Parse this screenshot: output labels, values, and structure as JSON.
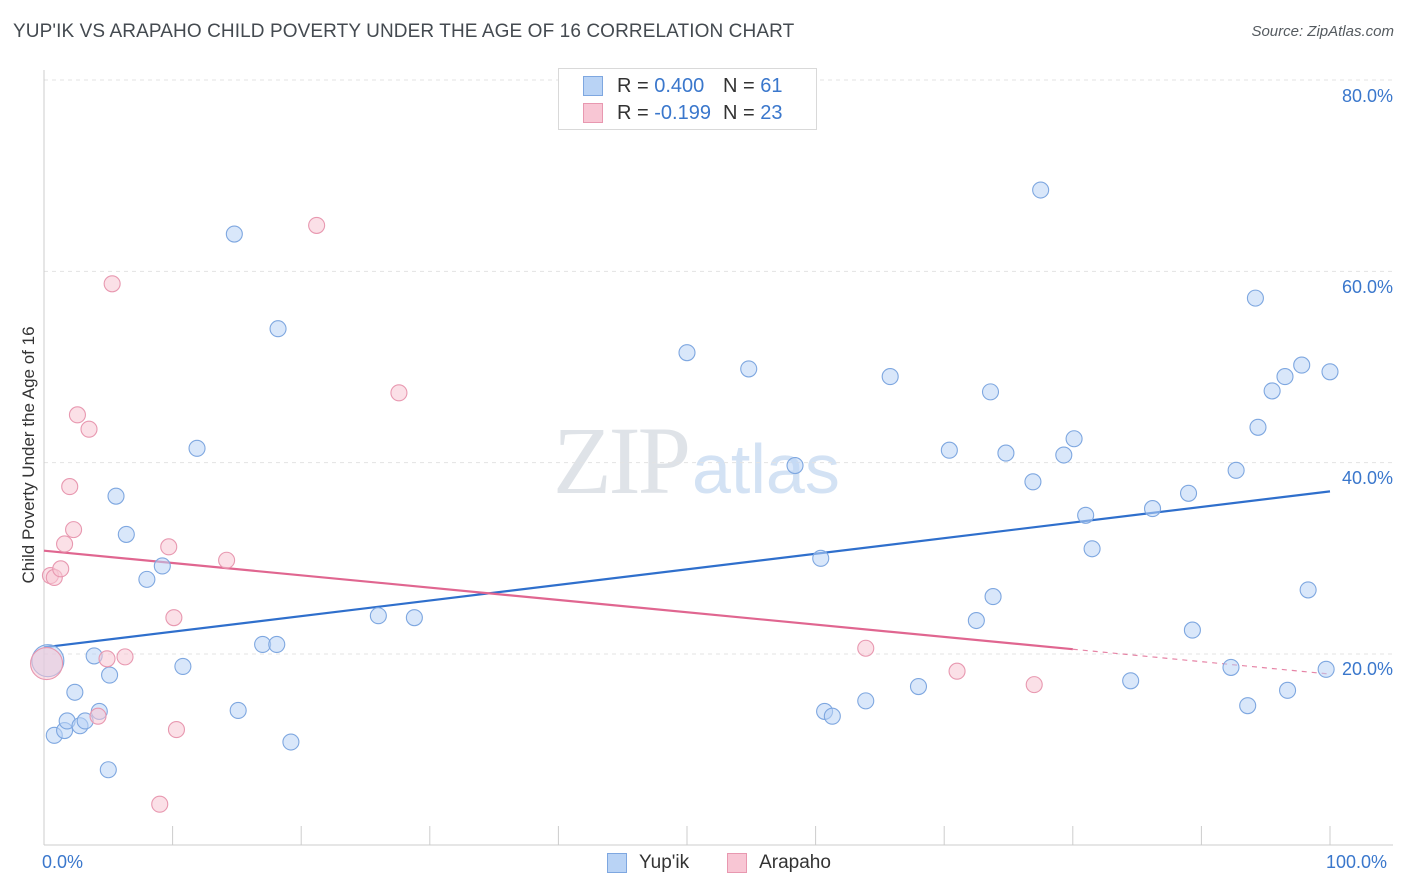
{
  "header": {
    "title": "YUP'IK VS ARAPAHO CHILD POVERTY UNDER THE AGE OF 16 CORRELATION CHART",
    "source": "Source: ZipAtlas.com"
  },
  "watermark": {
    "zip": "ZIP",
    "atlas": "atlas"
  },
  "legend": {
    "r_label": "R =",
    "n_label": "N =",
    "series": [
      {
        "r_value": "0.400",
        "n_value": "61"
      },
      {
        "r_value": "-0.199",
        "n_value": "23"
      }
    ]
  },
  "bottom_legend": {
    "items": [
      "Yup'ik",
      "Arapaho"
    ]
  },
  "colors": {
    "blue_fill": "#b9d3f5",
    "blue_stroke": "#7ea7e0",
    "blue_line": "#2f6fcc",
    "pink_fill": "#f8c6d4",
    "pink_stroke": "#e898b0",
    "pink_line": "#e06690",
    "axis_text": "#3a77cc",
    "grid": "#e3e3e3"
  },
  "chart_data": {
    "type": "scatter",
    "title": "YUP'IK VS ARAPAHO CHILD POVERTY UNDER THE AGE OF 16 CORRELATION CHART",
    "xlabel": "",
    "ylabel": "Child Poverty Under the Age of 16",
    "xlim": [
      0,
      100
    ],
    "ylim": [
      0,
      80
    ],
    "x_tick_labels": [
      "0.0%",
      "100.0%"
    ],
    "y_ticks": [
      20,
      40,
      60,
      80
    ],
    "y_tick_labels": [
      "20.0%",
      "40.0%",
      "60.0%",
      "80.0%"
    ],
    "grid": true,
    "legend_position": "top-center",
    "series": [
      {
        "name": "Yup'ik",
        "r": 0.4,
        "n": 61,
        "trend": {
          "x0": 0,
          "y0": 20.7,
          "x1": 100,
          "y1": 37.0
        },
        "points": [
          [
            0.3,
            19.3
          ],
          [
            0.8,
            11.5
          ],
          [
            1.6,
            12.0
          ],
          [
            1.8,
            13.0
          ],
          [
            2.4,
            16.0
          ],
          [
            2.8,
            12.5
          ],
          [
            3.2,
            13.0
          ],
          [
            3.9,
            19.8
          ],
          [
            4.3,
            14.0
          ],
          [
            5.1,
            17.8
          ],
          [
            5.0,
            7.9
          ],
          [
            5.6,
            36.5
          ],
          [
            6.4,
            32.5
          ],
          [
            8.0,
            27.8
          ],
          [
            9.2,
            29.2
          ],
          [
            10.8,
            18.7
          ],
          [
            11.9,
            41.5
          ],
          [
            14.8,
            63.9
          ],
          [
            15.1,
            14.1
          ],
          [
            17.0,
            21.0
          ],
          [
            18.1,
            21.0
          ],
          [
            18.2,
            54.0
          ],
          [
            19.2,
            10.8
          ],
          [
            26.0,
            24.0
          ],
          [
            28.8,
            23.8
          ],
          [
            50.0,
            51.5
          ],
          [
            54.8,
            49.8
          ],
          [
            58.4,
            39.7
          ],
          [
            60.4,
            30.0
          ],
          [
            60.7,
            14.0
          ],
          [
            61.3,
            13.5
          ],
          [
            63.9,
            15.1
          ],
          [
            65.8,
            49.0
          ],
          [
            68.0,
            16.6
          ],
          [
            70.4,
            41.3
          ],
          [
            72.5,
            23.5
          ],
          [
            73.6,
            47.4
          ],
          [
            73.8,
            26.0
          ],
          [
            74.8,
            41.0
          ],
          [
            76.9,
            38.0
          ],
          [
            77.5,
            68.5
          ],
          [
            79.3,
            40.8
          ],
          [
            80.1,
            42.5
          ],
          [
            81.0,
            34.5
          ],
          [
            81.5,
            31.0
          ],
          [
            84.5,
            17.2
          ],
          [
            86.2,
            35.2
          ],
          [
            89.0,
            36.8
          ],
          [
            89.3,
            22.5
          ],
          [
            92.3,
            18.6
          ],
          [
            92.7,
            39.2
          ],
          [
            93.6,
            14.6
          ],
          [
            94.2,
            57.2
          ],
          [
            94.4,
            43.7
          ],
          [
            95.5,
            47.5
          ],
          [
            96.5,
            49.0
          ],
          [
            96.7,
            16.2
          ],
          [
            97.8,
            50.2
          ],
          [
            98.3,
            26.7
          ],
          [
            99.7,
            18.4
          ],
          [
            100.0,
            49.5
          ]
        ]
      },
      {
        "name": "Arapaho",
        "r": -0.199,
        "n": 23,
        "trend": {
          "x0": 0,
          "y0": 30.8,
          "x1": 80,
          "y1": 20.5,
          "dash_x1": 100,
          "dash_y1": 17.9
        },
        "points": [
          [
            0.2,
            19.0
          ],
          [
            0.5,
            28.2
          ],
          [
            0.8,
            28.0
          ],
          [
            1.3,
            28.9
          ],
          [
            1.6,
            31.5
          ],
          [
            2.0,
            37.5
          ],
          [
            2.3,
            33.0
          ],
          [
            2.6,
            45.0
          ],
          [
            3.5,
            43.5
          ],
          [
            4.2,
            13.5
          ],
          [
            4.9,
            19.5
          ],
          [
            5.3,
            58.7
          ],
          [
            6.3,
            19.7
          ],
          [
            9.0,
            4.3
          ],
          [
            9.7,
            31.2
          ],
          [
            10.1,
            23.8
          ],
          [
            10.3,
            12.1
          ],
          [
            14.2,
            29.8
          ],
          [
            21.2,
            64.8
          ],
          [
            27.6,
            47.3
          ],
          [
            63.9,
            20.6
          ],
          [
            71.0,
            18.2
          ],
          [
            77.0,
            16.8
          ]
        ]
      }
    ]
  }
}
